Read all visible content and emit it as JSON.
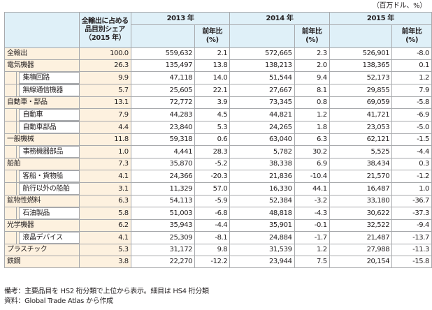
{
  "unit_note": "（百万ドル、%）",
  "header": {
    "share_label_lines": [
      "全輸出に占める",
      "品目別シェア",
      "（2015 年）"
    ],
    "years": [
      "2013 年",
      "2014 年",
      "2015 年"
    ],
    "yoy_label_lines": [
      "前年比",
      "(%)"
    ]
  },
  "rows": [
    {
      "label": "全輸出",
      "sub": false,
      "share": "100.0",
      "v2013": "559,632",
      "y2013": "2.1",
      "v2014": "572,665",
      "y2014": "2.3",
      "v2015": "526,901",
      "y2015": "-8.0"
    },
    {
      "label": "電気機器",
      "sub": false,
      "share": "26.3",
      "v2013": "135,497",
      "y2013": "13.8",
      "v2014": "138,213",
      "y2014": "2.0",
      "v2015": "138,365",
      "y2015": "0.1"
    },
    {
      "label": "集積回路",
      "sub": true,
      "share": "9.9",
      "v2013": "47,118",
      "y2013": "14.0",
      "v2014": "51,544",
      "y2014": "9.4",
      "v2015": "52,173",
      "y2015": "1.2"
    },
    {
      "label": "無線通信機器",
      "sub": true,
      "share": "5.7",
      "v2013": "25,605",
      "y2013": "22.1",
      "v2014": "27,667",
      "y2014": "8.1",
      "v2015": "29,855",
      "y2015": "7.9"
    },
    {
      "label": "自動車・部品",
      "sub": false,
      "share": "13.1",
      "v2013": "72,772",
      "y2013": "3.9",
      "v2014": "73,345",
      "y2014": "0.8",
      "v2015": "69,059",
      "y2015": "-5.8"
    },
    {
      "label": "自動車",
      "sub": true,
      "share": "7.9",
      "v2013": "44,283",
      "y2013": "4.5",
      "v2014": "44,821",
      "y2014": "1.2",
      "v2015": "41,721",
      "y2015": "-6.9"
    },
    {
      "label": "自動車部品",
      "sub": true,
      "share": "4.4",
      "v2013": "23,840",
      "y2013": "5.3",
      "v2014": "24,265",
      "y2014": "1.8",
      "v2015": "23,053",
      "y2015": "-5.0"
    },
    {
      "label": "一般機械",
      "sub": false,
      "share": "11.8",
      "v2013": "59,318",
      "y2013": "0.6",
      "v2014": "63,040",
      "y2014": "6.3",
      "v2015": "62,121",
      "y2015": "-1.5"
    },
    {
      "label": "事務機器部品",
      "sub": true,
      "share": "1.0",
      "v2013": "4,441",
      "y2013": "28.3",
      "v2014": "5,782",
      "y2014": "30.2",
      "v2015": "5,525",
      "y2015": "-4.4"
    },
    {
      "label": "船舶",
      "sub": false,
      "share": "7.3",
      "v2013": "35,870",
      "y2013": "-5.2",
      "v2014": "38,338",
      "y2014": "6.9",
      "v2015": "38,434",
      "y2015": "0.3"
    },
    {
      "label": "客船・貨物船",
      "sub": true,
      "share": "4.1",
      "v2013": "24,366",
      "y2013": "-20.3",
      "v2014": "21,836",
      "y2014": "-10.4",
      "v2015": "21,570",
      "y2015": "-1.2"
    },
    {
      "label": "航行以外の船舶",
      "sub": true,
      "share": "3.1",
      "v2013": "11,329",
      "y2013": "57.0",
      "v2014": "16,330",
      "y2014": "44.1",
      "v2015": "16,487",
      "y2015": "1.0"
    },
    {
      "label": "鉱物性燃料",
      "sub": false,
      "share": "6.3",
      "v2013": "54,113",
      "y2013": "-5.9",
      "v2014": "52,384",
      "y2014": "-3.2",
      "v2015": "33,180",
      "y2015": "-36.7"
    },
    {
      "label": "石油製品",
      "sub": true,
      "share": "5.8",
      "v2013": "51,003",
      "y2013": "-6.8",
      "v2014": "48,818",
      "y2014": "-4.3",
      "v2015": "30,622",
      "y2015": "-37.3"
    },
    {
      "label": "光学機器",
      "sub": false,
      "share": "6.2",
      "v2013": "35,943",
      "y2013": "-4.4",
      "v2014": "35,901",
      "y2014": "-0.1",
      "v2015": "32,522",
      "y2015": "-9.4"
    },
    {
      "label": "液晶デバイス",
      "sub": true,
      "share": "4.1",
      "v2013": "25,309",
      "y2013": "-8.1",
      "v2014": "24,884",
      "y2014": "-1.7",
      "v2015": "21,487",
      "y2015": "-13.7"
    },
    {
      "label": "プラスチック",
      "sub": false,
      "share": "5.3",
      "v2013": "31,172",
      "y2013": "9.8",
      "v2014": "31,539",
      "y2014": "1.2",
      "v2015": "27,988",
      "y2015": "-11.3"
    },
    {
      "label": "鉄鋼",
      "sub": false,
      "share": "3.8",
      "v2013": "22,270",
      "y2013": "-12.2",
      "v2014": "23,944",
      "y2014": "7.5",
      "v2015": "20,154",
      "y2015": "-15.8"
    }
  ],
  "notes": [
    "備考：主要品目を HS2 桁分類で上位から表示。細目は HS4 桁分類",
    "資料：Global Trade Atlas から作成"
  ]
}
